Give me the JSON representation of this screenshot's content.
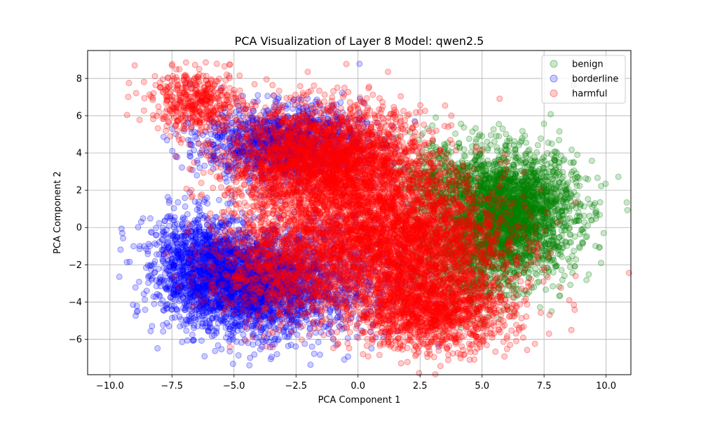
{
  "chart_data": {
    "type": "scatter",
    "title": "PCA Visualization of Layer 8 Model: qwen2.5",
    "xlabel": "PCA Component 1",
    "ylabel": "PCA Component 2",
    "xlim": [
      -10.9,
      11.0
    ],
    "ylim": [
      -7.9,
      9.5
    ],
    "xticks": [
      -10.0,
      -7.5,
      -5.0,
      -2.5,
      0.0,
      2.5,
      5.0,
      7.5,
      10.0
    ],
    "xtick_labels": [
      "−10.0",
      "−7.5",
      "−5.0",
      "−2.5",
      "0.0",
      "2.5",
      "5.0",
      "7.5",
      "10.0"
    ],
    "yticks": [
      -6,
      -4,
      -2,
      0,
      2,
      4,
      6,
      8
    ],
    "ytick_labels": [
      "−6",
      "−4",
      "−2",
      "0",
      "2",
      "4",
      "6",
      "8"
    ],
    "grid": true,
    "legend_position": "top-right",
    "marker_alpha": 0.2,
    "series": [
      {
        "name": "benign",
        "color": "#008000",
        "clusters": [
          {
            "cx": 6.2,
            "cy": 0.8,
            "sx": 1.3,
            "sy": 1.6,
            "n": 2600
          },
          {
            "cx": 4.5,
            "cy": -1.5,
            "sx": 1.2,
            "sy": 1.6,
            "n": 700
          },
          {
            "cx": 3.5,
            "cy": 2.5,
            "sx": 1.0,
            "sy": 1.2,
            "n": 400
          }
        ],
        "points": [
          [
            9.9,
            -0.3
          ],
          [
            9.6,
            0.8
          ],
          [
            9.8,
            -1.9
          ],
          [
            7.8,
            -4.5
          ],
          [
            2.8,
            5.3
          ],
          [
            5.0,
            4.9
          ]
        ]
      },
      {
        "name": "borderline",
        "color": "#0000ff",
        "clusters": [
          {
            "cx": -4.5,
            "cy": -3.0,
            "sx": 1.6,
            "sy": 1.3,
            "n": 2800
          },
          {
            "cx": -6.5,
            "cy": -1.5,
            "sx": 1.0,
            "sy": 1.2,
            "n": 600
          },
          {
            "cx": -3.0,
            "cy": 4.5,
            "sx": 1.6,
            "sy": 1.0,
            "n": 1400
          },
          {
            "cx": -1.0,
            "cy": -2.5,
            "sx": 1.5,
            "sy": 1.8,
            "n": 500
          }
        ],
        "points": [
          [
            -9.5,
            -0.3
          ],
          [
            -8.8,
            -1.0
          ],
          [
            -7.5,
            5.3
          ],
          [
            -2.7,
            -6.3
          ],
          [
            -1.0,
            -6.0
          ],
          [
            0.5,
            -5.6
          ]
        ]
      },
      {
        "name": "harmful",
        "color": "#ff0000",
        "clusters": [
          {
            "cx": -1.2,
            "cy": 3.4,
            "sx": 2.0,
            "sy": 1.5,
            "n": 3200
          },
          {
            "cx": 1.5,
            "cy": -0.8,
            "sx": 2.2,
            "sy": 1.8,
            "n": 3600
          },
          {
            "cx": 3.0,
            "cy": -4.5,
            "sx": 1.6,
            "sy": 1.0,
            "n": 1400
          },
          {
            "cx": -6.5,
            "cy": 6.8,
            "sx": 0.9,
            "sy": 0.8,
            "n": 450
          },
          {
            "cx": -3.2,
            "cy": -2.0,
            "sx": 1.5,
            "sy": 1.6,
            "n": 900
          }
        ],
        "points": [
          [
            -9.0,
            8.7
          ],
          [
            -7.2,
            8.5
          ],
          [
            1.0,
            6.5
          ],
          [
            2.5,
            6.2
          ],
          [
            3.0,
            5.1
          ],
          [
            2.9,
            -6.8
          ],
          [
            4.5,
            -7.1
          ],
          [
            0.2,
            -6.8
          ],
          [
            8.6,
            -5.5
          ],
          [
            7.7,
            -5.7
          ]
        ]
      }
    ]
  }
}
